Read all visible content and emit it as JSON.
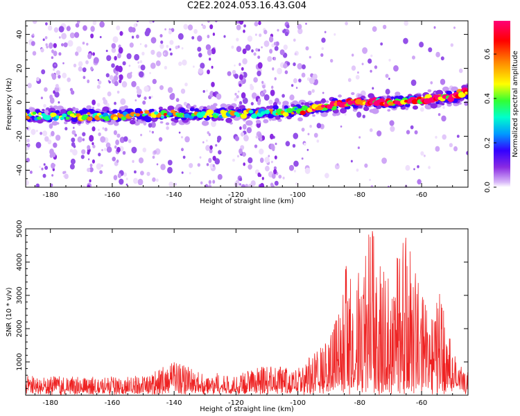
{
  "title": "C2E2.2024.053.16.43.G04",
  "colors": {
    "snr_line": "#ee2222",
    "colormap": [
      "#ffffff",
      "#d8b8f8",
      "#8a2be2",
      "#3300ff",
      "#0099ff",
      "#00ffcc",
      "#33ff33",
      "#ffff00",
      "#ff8800",
      "#ff0000",
      "#ff0077"
    ]
  },
  "chart_data": [
    {
      "type": "heatmap",
      "name": "spectrogram",
      "xlabel": "Height of straight line (km)",
      "ylabel": "Frequency (Hz)",
      "xlim": [
        -188,
        -45
      ],
      "ylim": [
        -50,
        48
      ],
      "xticks": [
        -180,
        -160,
        -140,
        -120,
        -100,
        -80,
        -60
      ],
      "xtick_labels": [
        "-180",
        "-160",
        "-140",
        "-120",
        "-100",
        "-80",
        "-60"
      ],
      "yticks": [
        -40,
        -20,
        0,
        20,
        40
      ],
      "ytick_labels": [
        "-40",
        "-20",
        "0",
        "20",
        "40"
      ],
      "colorbar": {
        "label": "Normalized spectral amplitude",
        "range": [
          0,
          0.75
        ],
        "ticks": [
          0.0,
          0.2,
          0.4,
          0.6
        ],
        "tick_labels": [
          "0.0",
          "0.2",
          "0.4",
          "0.6"
        ]
      },
      "ridge": {
        "description_points_x": [
          -188,
          -160,
          -140,
          -120,
          -100,
          -90,
          -80,
          -70,
          -60,
          -50,
          -45
        ],
        "frequency_hz": [
          -8,
          -8,
          -7,
          -7,
          -5,
          -2,
          0,
          0,
          1,
          3,
          6
        ],
        "peak_amplitude": [
          0.3,
          0.35,
          0.35,
          0.3,
          0.35,
          0.5,
          0.6,
          0.65,
          0.6,
          0.6,
          0.5
        ]
      }
    },
    {
      "type": "line",
      "name": "snr",
      "xlabel": "Height of straight line (km)",
      "ylabel": "SNR (10 * v/v)",
      "xlim": [
        -188,
        -45
      ],
      "ylim": [
        0,
        5000
      ],
      "xticks": [
        -180,
        -160,
        -140,
        -120,
        -100,
        -80,
        -60
      ],
      "xtick_labels": [
        "-180",
        "-160",
        "-140",
        "-120",
        "-100",
        "-80",
        "-60"
      ],
      "yticks": [
        1000,
        2000,
        3000,
        4000,
        5000
      ],
      "ytick_labels": [
        "1000",
        "2000",
        "3000",
        "4000",
        "5000"
      ],
      "envelope": {
        "x": [
          -188,
          -170,
          -150,
          -140,
          -130,
          -120,
          -110,
          -100,
          -95,
          -90,
          -86,
          -85,
          -82,
          -80,
          -78,
          -76,
          -74,
          -70,
          -67,
          -65,
          -62,
          -60,
          -58,
          -56,
          -55,
          -52,
          -50,
          -48,
          -45
        ],
        "peak": [
          600,
          550,
          600,
          1000,
          700,
          650,
          900,
          800,
          1300,
          1700,
          2700,
          4100,
          3200,
          4000,
          4800,
          5000,
          4400,
          3300,
          4600,
          4800,
          3800,
          3200,
          2600,
          2400,
          3400,
          2400,
          1400,
          1000,
          700
        ]
      }
    }
  ]
}
